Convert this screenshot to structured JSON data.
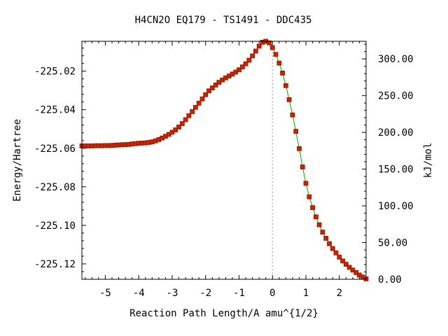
{
  "chart_data": {
    "type": "line",
    "title": "H4CN2O   EQ179 - TS1491 - DDC435",
    "xlabel": "Reaction Path Length/A amu^{1/2}",
    "ylabel": "Energy/Hartree",
    "y2label": "kJ/mol",
    "xlim": [
      -5.7,
      2.8
    ],
    "ylim": [
      -225.128,
      -225.0045
    ],
    "y2lim": [
      0,
      324
    ],
    "x_ticks": [
      -5,
      -4,
      -3,
      -2,
      -1,
      0,
      1,
      2
    ],
    "x_tick_labels": [
      "-5",
      "-4",
      "-3",
      "-2",
      "-1",
      "0",
      "1",
      "2"
    ],
    "y_ticks": [
      -225.02,
      -225.04,
      -225.06,
      -225.08,
      -225.1,
      -225.12
    ],
    "y_tick_labels": [
      "-225.02",
      "-225.04",
      "-225.06",
      "-225.08",
      "-225.10",
      "-225.12"
    ],
    "y2_ticks": [
      0,
      50,
      100,
      150,
      200,
      250,
      300
    ],
    "y2_tick_labels": [
      "0.00",
      "50.00",
      "100.00",
      "150.00",
      "200.00",
      "250.00",
      "300.00"
    ],
    "transition_state_x": 0.0,
    "grid": false,
    "colors": {
      "markers": "#cc2200",
      "marker_edge": "#8a1a00",
      "line": "#00aa00",
      "ts_line": "#999999",
      "axes": "#000000"
    },
    "series": [
      {
        "x": [
          -5.7,
          -5.6,
          -5.5,
          -5.4,
          -5.3,
          -5.2,
          -5.1,
          -5.0,
          -4.9,
          -4.8,
          -4.7,
          -4.6,
          -4.5,
          -4.4,
          -4.3,
          -4.2,
          -4.1,
          -4.0,
          -3.9,
          -3.8,
          -3.7,
          -3.6,
          -3.5,
          -3.4,
          -3.3,
          -3.2,
          -3.1,
          -3.0,
          -2.9,
          -2.8,
          -2.7,
          -2.6,
          -2.5,
          -2.4,
          -2.3,
          -2.2,
          -2.1,
          -2.0,
          -1.9,
          -1.8,
          -1.7,
          -1.6,
          -1.5,
          -1.4,
          -1.3,
          -1.2,
          -1.1,
          -1.0,
          -0.9,
          -0.8,
          -0.7,
          -0.6,
          -0.5,
          -0.4,
          -0.3,
          -0.2,
          -0.1,
          0.0,
          0.1,
          0.2,
          0.3,
          0.4,
          0.5,
          0.6,
          0.7,
          0.8,
          0.9,
          1.0,
          1.1,
          1.2,
          1.3,
          1.4,
          1.5,
          1.6,
          1.7,
          1.8,
          1.9,
          2.0,
          2.1,
          2.2,
          2.3,
          2.4,
          2.5,
          2.6,
          2.7,
          2.8
        ],
        "y": [
          -225.0588,
          -225.0588,
          -225.0588,
          -225.0588,
          -225.0587,
          -225.0587,
          -225.0587,
          -225.0586,
          -225.0586,
          -225.0585,
          -225.0584,
          -225.0583,
          -225.0582,
          -225.0581,
          -225.058,
          -225.0578,
          -225.0576,
          -225.0574,
          -225.0573,
          -225.0572,
          -225.057,
          -225.0567,
          -225.0562,
          -225.0555,
          -225.0547,
          -225.0538,
          -225.0528,
          -225.0517,
          -225.0505,
          -225.049,
          -225.0472,
          -225.0452,
          -225.0431,
          -225.041,
          -225.0388,
          -225.0366,
          -225.0344,
          -225.0322,
          -225.0302,
          -225.0287,
          -225.0272,
          -225.0258,
          -225.0246,
          -225.0235,
          -225.0225,
          -225.0215,
          -225.0205,
          -225.0193,
          -225.0178,
          -225.0162,
          -225.0143,
          -225.0121,
          -225.0096,
          -225.007,
          -225.005,
          -225.0045,
          -225.0053,
          -225.0078,
          -225.0113,
          -225.0158,
          -225.021,
          -225.0275,
          -225.0348,
          -225.0427,
          -225.0512,
          -225.0602,
          -225.0697,
          -225.0782,
          -225.0852,
          -225.0908,
          -225.0956,
          -225.0997,
          -225.1035,
          -225.1067,
          -225.1095,
          -225.112,
          -225.1143,
          -225.1165,
          -225.1185,
          -225.1202,
          -225.1218,
          -225.1232,
          -225.1245,
          -225.1258,
          -225.1268,
          -225.1278
        ]
      }
    ]
  }
}
